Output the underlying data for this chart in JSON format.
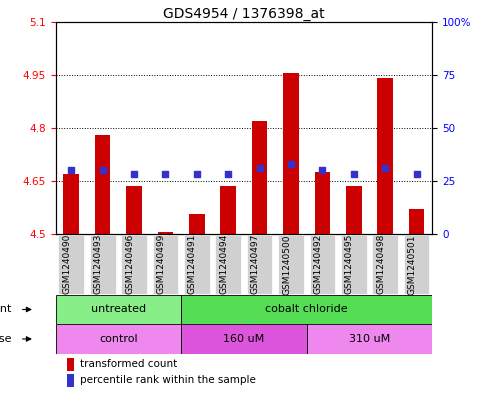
{
  "title": "GDS4954 / 1376398_at",
  "samples": [
    "GSM1240490",
    "GSM1240493",
    "GSM1240496",
    "GSM1240499",
    "GSM1240491",
    "GSM1240494",
    "GSM1240497",
    "GSM1240500",
    "GSM1240492",
    "GSM1240495",
    "GSM1240498",
    "GSM1240501"
  ],
  "transformed_counts": [
    4.67,
    4.78,
    4.635,
    4.506,
    4.556,
    4.635,
    4.82,
    4.955,
    4.675,
    4.635,
    4.94,
    4.57
  ],
  "percentile_ranks": [
    30,
    30,
    28,
    28,
    28,
    28,
    31,
    33,
    30,
    28,
    31,
    28
  ],
  "ylim_left": [
    4.5,
    5.1
  ],
  "ylim_right": [
    0,
    100
  ],
  "yticks_left": [
    4.5,
    4.65,
    4.8,
    4.95
  ],
  "ytick_labels_left": [
    "4.5",
    "4.65",
    "4.8",
    "4.95"
  ],
  "ytick_extra_left": [
    5.1
  ],
  "ytick_extra_labels_left": [
    "5.1"
  ],
  "yticks_right": [
    0,
    25,
    50,
    75,
    100
  ],
  "ytick_labels_right": [
    "0",
    "25",
    "50",
    "75",
    "100%"
  ],
  "bar_color": "#cc0000",
  "dot_color": "#3333cc",
  "baseline": 4.5,
  "agent_groups": [
    {
      "label": "untreated",
      "start": 0,
      "end": 4,
      "color": "#88ee88"
    },
    {
      "label": "cobalt chloride",
      "start": 4,
      "end": 12,
      "color": "#55dd55"
    }
  ],
  "dose_groups": [
    {
      "label": "control",
      "start": 0,
      "end": 4,
      "color": "#ee88ee"
    },
    {
      "label": "160 uM",
      "start": 4,
      "end": 8,
      "color": "#dd55dd"
    },
    {
      "label": "310 uM",
      "start": 8,
      "end": 12,
      "color": "#ee88ee"
    }
  ],
  "legend_items": [
    {
      "color": "#cc0000",
      "label": "transformed count"
    },
    {
      "color": "#3333cc",
      "label": "percentile rank within the sample"
    }
  ],
  "bar_width": 0.5,
  "title_fontsize": 10,
  "tick_fontsize": 7.5,
  "label_fontsize": 8.5,
  "xtick_fontsize": 6.5
}
